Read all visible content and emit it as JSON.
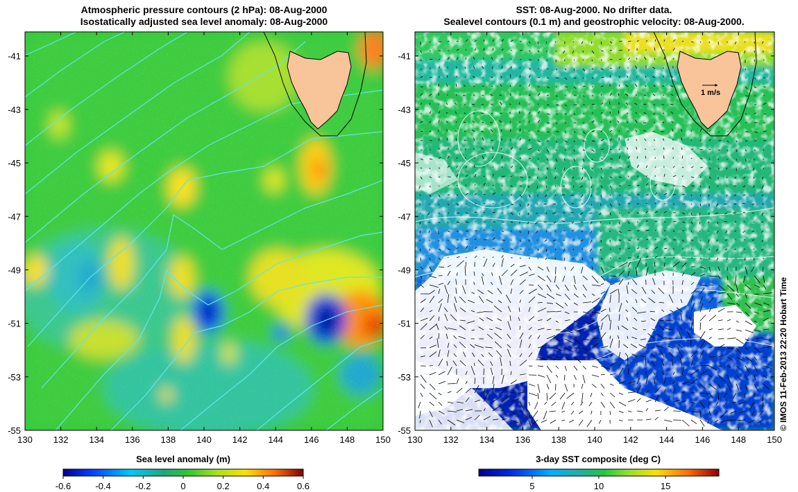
{
  "left_panel": {
    "title_line1": "Atmospheric pressure contours (2 hPa): 08-Aug-2000",
    "title_line2": "Isostatically adjusted sea level anomaly: 08-Aug-2000",
    "colorbar_label": "Sea level anomaly (m)",
    "colorbar_ticks": [
      "-0.6",
      "-0.4",
      "-0.2",
      "0",
      "0.2",
      "0.4",
      "0.6"
    ],
    "colorbar_range": [
      -0.6,
      0.6
    ]
  },
  "right_panel": {
    "title_line1": "SST: 08-Aug-2000. No drifter data.",
    "title_line2": "Sealevel contours (0.1 m) and geostrophic velocity: 08-Aug-2000.",
    "colorbar_label": "3-day SST composite (deg C)",
    "colorbar_ticks": [
      "5",
      "10",
      "15"
    ],
    "colorbar_range": [
      1,
      19
    ],
    "velocity_scale_label": "1 m/s"
  },
  "axes": {
    "x_ticks": [
      "130",
      "132",
      "134",
      "136",
      "138",
      "140",
      "142",
      "144",
      "146",
      "148",
      "150"
    ],
    "y_ticks": [
      "-41",
      "-43",
      "-45",
      "-47",
      "-49",
      "-51",
      "-53",
      "-55"
    ],
    "x_range": [
      130,
      150
    ],
    "y_range": [
      -55,
      -40.1
    ]
  },
  "credit": "© IMOS 11-Feb-2013 22:20 Hobart Time",
  "colors": {
    "land": "#f9c49a",
    "coast": "#000000",
    "left_contours": "#5fe6ec",
    "right_contours": "#ffffff"
  }
}
